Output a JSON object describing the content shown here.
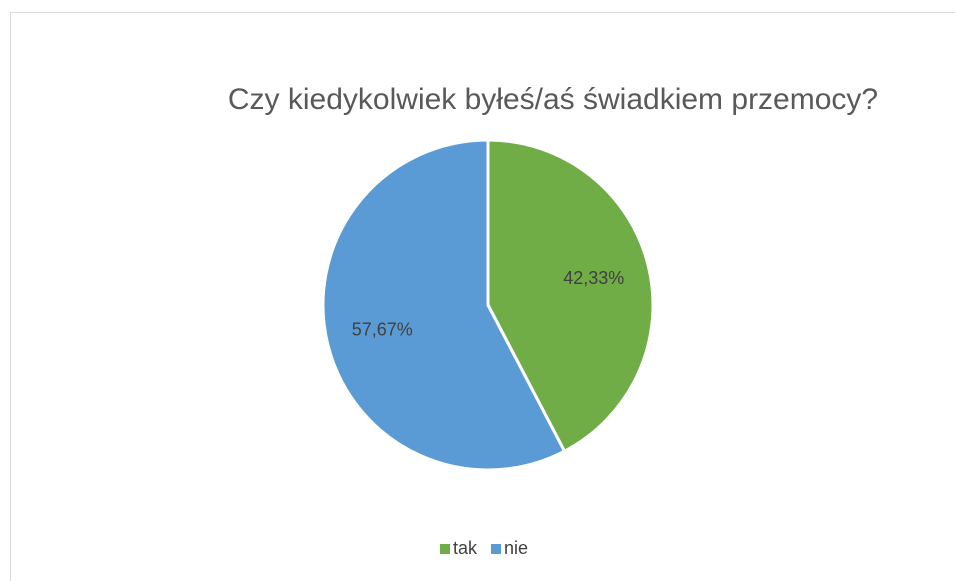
{
  "chart_data": {
    "type": "pie",
    "title": "Czy kiedykolwiek byłeś/aś świadkiem przemocy?",
    "categories": [
      "tak",
      "nie"
    ],
    "values": [
      42.33,
      57.67
    ],
    "value_labels": [
      "42,33%",
      "57,67%"
    ],
    "colors": [
      "#70ad47",
      "#5b9bd5"
    ],
    "legend": "bottom"
  }
}
